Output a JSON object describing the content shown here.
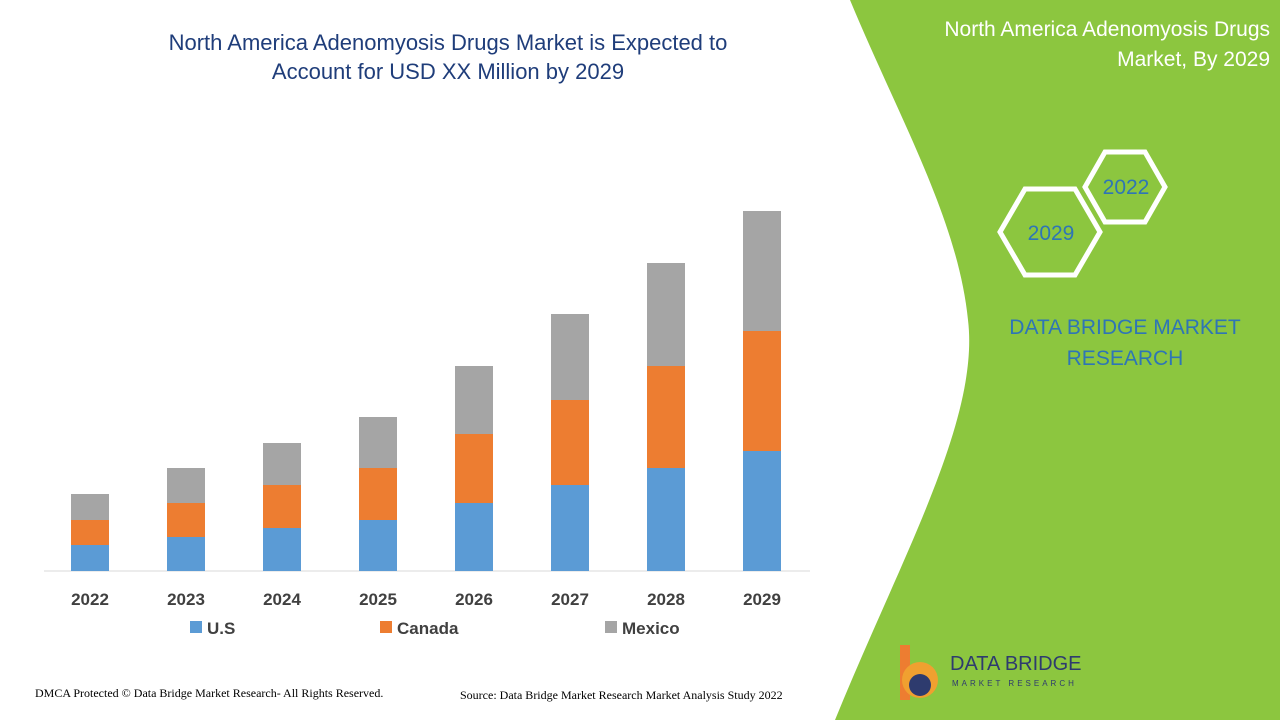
{
  "chart_data": {
    "type": "stacked-bar",
    "title": "North America Adenomyosis Drugs Market is Expected to Account for USD XX Million by 2029",
    "categories": [
      "2022",
      "2023",
      "2024",
      "2025",
      "2026",
      "2027",
      "2028",
      "2029"
    ],
    "series": [
      {
        "name": "U.S",
        "color": "#5b9bd5",
        "values": [
          26,
          34,
          43,
          51,
          68,
          86,
          103,
          120
        ]
      },
      {
        "name": "Canada",
        "color": "#ed7d31",
        "values": [
          25,
          34,
          43,
          52,
          69,
          85,
          102,
          120
        ]
      },
      {
        "name": "Mexico",
        "color": "#a5a5a5",
        "values": [
          26,
          35,
          42,
          51,
          68,
          86,
          103,
          120
        ]
      }
    ],
    "ylim": [
      0,
      400
    ],
    "legend": "bottom"
  },
  "panel": {
    "title": "North America Adenomyosis Drugs Market, By 2029",
    "hex_top": "2022",
    "hex_bottom": "2029",
    "brand": "DATA BRIDGE MARKET RESEARCH"
  },
  "logo": {
    "name": "DATA BRIDGE",
    "tagline": "MARKET RESEARCH"
  },
  "footer": {
    "left": "DMCA Protected © Data Bridge Market Research- All Rights Reserved.",
    "right": "Source: Data Bridge Market Research Market Analysis Study 2022"
  }
}
